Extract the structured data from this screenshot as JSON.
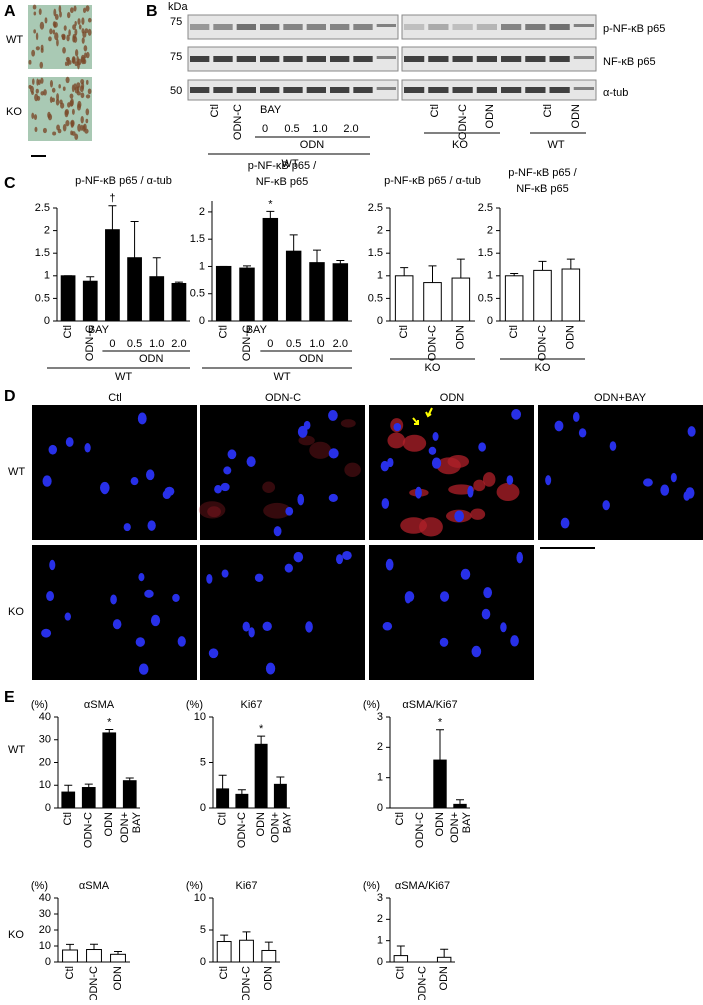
{
  "panel_labels": [
    "A",
    "B",
    "C",
    "D",
    "E"
  ],
  "panel_a": {
    "rows": [
      "WT",
      "KO"
    ]
  },
  "panel_b": {
    "unit": "kDa",
    "markers": [
      "75",
      "75",
      "50"
    ],
    "proteins": [
      "p-NF-κB p65",
      "NF-κB p65",
      "α-tub"
    ],
    "wt_lanes": [
      "Ctl",
      "ODN-C"
    ],
    "treatment": "BAY",
    "doses": [
      "0",
      "0.5",
      "1.0",
      "2.0"
    ],
    "dose_group": "ODN",
    "wt_group": "WT",
    "ko_lanes": [
      "Ctl",
      "ODN-C",
      "ODN"
    ],
    "ko_group": "KO",
    "wt2_lanes": [
      "Ctl",
      "ODN"
    ],
    "wt2_group": "WT"
  },
  "panel_d": {
    "columns": [
      "Ctl",
      "ODN-C",
      "ODN",
      "ODN+BAY"
    ],
    "rows": [
      "WT",
      "KO"
    ]
  },
  "panel_e": {
    "rows": [
      "WT",
      "KO"
    ]
  },
  "chart_data": [
    {
      "type": "bar",
      "title": "p-NF-κB p65 / α-tub",
      "categories": [
        "Ctl",
        "ODN-C",
        "0",
        "0.5",
        "1.0",
        "2.0"
      ],
      "treatment": "BAY",
      "groups": [
        "ODN",
        "WT"
      ],
      "values": [
        1.0,
        0.88,
        2.02,
        1.4,
        0.98,
        0.83
      ],
      "errors": [
        0,
        0.1,
        0.53,
        0.8,
        0.42,
        0.03
      ],
      "significance": [
        null,
        null,
        "†",
        null,
        null,
        null
      ],
      "color": "#000000",
      "ylim": [
        0,
        2.5
      ],
      "yticks": [
        0,
        0.5,
        1,
        1.5,
        2,
        2.5
      ]
    },
    {
      "type": "bar",
      "title": [
        "p-NF-κB p65 /",
        "NF-κB p65"
      ],
      "categories": [
        "Ctl",
        "ODN-C",
        "0",
        "0.5",
        "1.0",
        "2.0"
      ],
      "treatment": "BAY",
      "groups": [
        "ODN",
        "WT"
      ],
      "values": [
        1.0,
        0.97,
        1.88,
        1.28,
        1.07,
        1.05
      ],
      "errors": [
        0,
        0.04,
        0.13,
        0.3,
        0.23,
        0.06
      ],
      "significance": [
        null,
        null,
        "*",
        null,
        null,
        null
      ],
      "color": "#000000",
      "ylim": [
        0,
        2.2
      ],
      "yticks": [
        0,
        0.5,
        1,
        1.5,
        2
      ]
    },
    {
      "type": "bar",
      "title": "p-NF-κB p65 / α-tub",
      "categories": [
        "Ctl",
        "ODN-C",
        "ODN"
      ],
      "groups": [
        "KO"
      ],
      "values": [
        1.0,
        0.85,
        0.95
      ],
      "errors": [
        0.18,
        0.37,
        0.42
      ],
      "color": "#ffffff",
      "ylim": [
        0,
        2.5
      ],
      "yticks": [
        0,
        0.5,
        1,
        1.5,
        2,
        2.5
      ]
    },
    {
      "type": "bar",
      "title": [
        "p-NF-κB p65 /",
        "NF-κB p65"
      ],
      "categories": [
        "Ctl",
        "ODN-C",
        "ODN"
      ],
      "groups": [
        "KO"
      ],
      "values": [
        1.0,
        1.12,
        1.15
      ],
      "errors": [
        0.05,
        0.2,
        0.22
      ],
      "color": "#ffffff",
      "ylim": [
        0,
        2.5
      ],
      "yticks": [
        0,
        0.5,
        1,
        1.5,
        2,
        2.5
      ]
    },
    {
      "type": "bar",
      "title": "αSMA",
      "y_unit": "(%)",
      "categories": [
        "Ctl",
        "ODN-C",
        "ODN",
        "ODN+ BAY"
      ],
      "values": [
        7,
        9,
        33,
        12
      ],
      "errors": [
        3,
        1.5,
        1.5,
        1.2
      ],
      "significance": [
        null,
        null,
        "*",
        null
      ],
      "color": "#000000",
      "ylim": [
        0,
        40
      ],
      "yticks": [
        0,
        10,
        20,
        30,
        40
      ]
    },
    {
      "type": "bar",
      "title": "Ki67",
      "y_unit": "(%)",
      "categories": [
        "Ctl",
        "ODN-C",
        "ODN",
        "ODN+ BAY"
      ],
      "values": [
        2.1,
        1.5,
        7.0,
        2.6
      ],
      "errors": [
        1.5,
        0.5,
        0.9,
        0.8
      ],
      "significance": [
        null,
        null,
        "*",
        null
      ],
      "color": "#000000",
      "ylim": [
        0,
        10
      ],
      "yticks": [
        0,
        5,
        10
      ]
    },
    {
      "type": "bar",
      "title": "αSMA/Ki67",
      "y_unit": "(%)",
      "categories": [
        "Ctl",
        "ODN-C",
        "ODN",
        "ODN+ BAY"
      ],
      "values": [
        0,
        0,
        1.58,
        0.12
      ],
      "errors": [
        0,
        0,
        1.0,
        0.15
      ],
      "significance": [
        null,
        null,
        "*",
        null
      ],
      "color": "#000000",
      "ylim": [
        0,
        3
      ],
      "yticks": [
        0,
        1,
        2,
        3
      ]
    },
    {
      "type": "bar",
      "title": "αSMA",
      "y_unit": "(%)",
      "categories": [
        "Ctl",
        "ODN-C",
        "ODN"
      ],
      "values": [
        7.5,
        7.8,
        4.8
      ],
      "errors": [
        3.5,
        3.3,
        1.8
      ],
      "color": "#ffffff",
      "ylim": [
        0,
        40
      ],
      "yticks": [
        0,
        10,
        20,
        30,
        40
      ]
    },
    {
      "type": "bar",
      "title": "Ki67",
      "y_unit": "(%)",
      "categories": [
        "Ctl",
        "ODN-C",
        "ODN"
      ],
      "values": [
        3.2,
        3.4,
        1.8
      ],
      "errors": [
        1.0,
        1.3,
        1.3
      ],
      "color": "#ffffff",
      "ylim": [
        0,
        10
      ],
      "yticks": [
        0,
        5,
        10
      ]
    },
    {
      "type": "bar",
      "title": "αSMA/Ki67",
      "y_unit": "(%)",
      "categories": [
        "Ctl",
        "ODN-C",
        "ODN"
      ],
      "values": [
        0.3,
        0,
        0.22
      ],
      "errors": [
        0.45,
        0,
        0.38
      ],
      "color": "#ffffff",
      "ylim": [
        0,
        3
      ],
      "yticks": [
        0,
        1,
        2,
        3
      ]
    }
  ]
}
